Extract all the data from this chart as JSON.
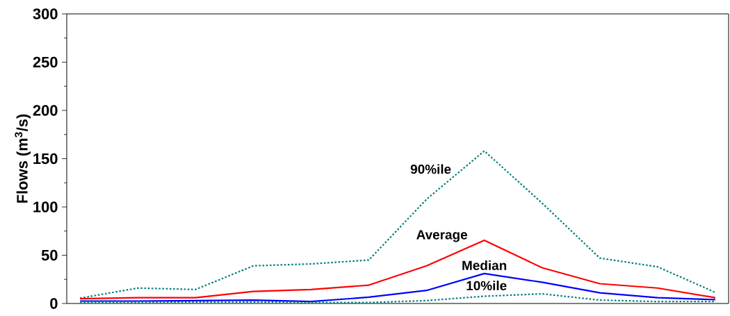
{
  "chart_data": {
    "type": "line",
    "ylabel": "Flows (m$^{3}$/s)",
    "categories": [
      null,
      null,
      null,
      null,
      null,
      null,
      null,
      null,
      null,
      null,
      null,
      null
    ],
    "series": [
      {
        "name": "90%ile",
        "color": "#008080",
        "line_style": "dotted",
        "values": [
          5.5,
          16,
          14.5,
          39,
          41,
          45,
          108,
          158,
          104,
          47,
          38,
          11.5
        ]
      },
      {
        "name": "Average",
        "color": "#ff0000",
        "line_style": "solid",
        "values": [
          5,
          6,
          6,
          12.5,
          14.5,
          19,
          39,
          65.5,
          37,
          20.5,
          16,
          6
        ]
      },
      {
        "name": "Median",
        "color": "#0000ff",
        "line_style": "solid",
        "values": [
          2.5,
          2.5,
          3,
          3.5,
          2,
          6.5,
          13.5,
          31,
          22,
          11,
          6,
          4
        ]
      },
      {
        "name": "10%ile",
        "color": "#008080",
        "line_style": "dotted",
        "values": [
          1,
          1,
          1.5,
          1.5,
          1,
          1,
          3,
          7.5,
          10,
          3.5,
          2,
          2
        ]
      }
    ],
    "ylim": [
      0,
      300
    ],
    "yticks": [
      0,
      {
        "value": 25,
        "label": null
      },
      50,
      {
        "value": 75,
        "label": null
      },
      100,
      {
        "value": 125,
        "label": null
      },
      150,
      {
        "value": 175,
        "label": null
      },
      200,
      {
        "value": 225,
        "label": null
      },
      250,
      {
        "value": 275,
        "label": null
      },
      300
    ],
    "tick_labels": "y",
    "grid": false,
    "legend": false,
    "marker": "none"
  }
}
